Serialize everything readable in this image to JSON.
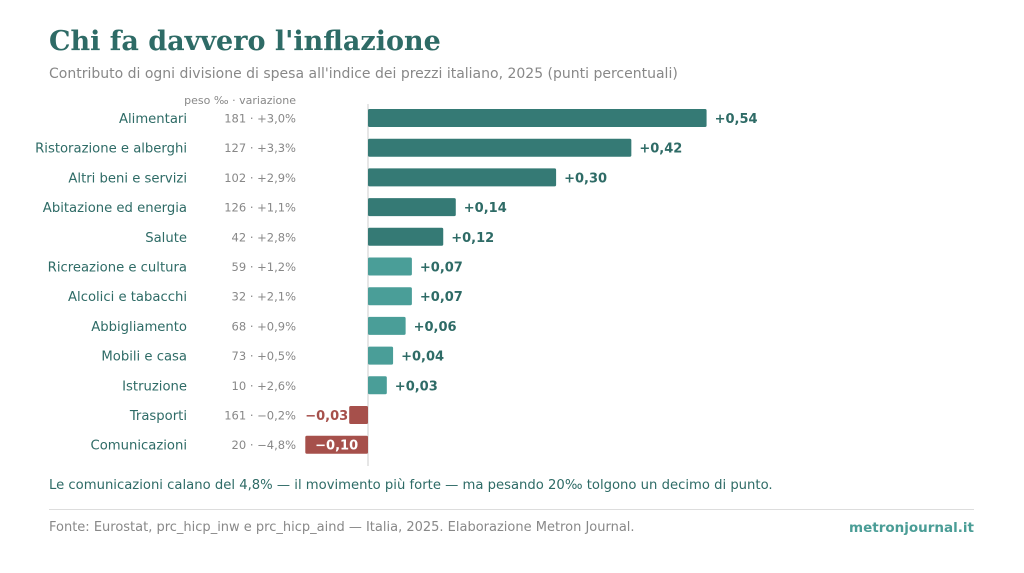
{
  "title": "Chi fa davvero l'inflazione",
  "subtitle": "Contributo di ogni divisione di spesa all'indice dei prezzi italiano, 2025 (punti percentuali)",
  "column_header": "peso ‰ · variazione",
  "callout": "Le comunicazioni calano del 4,8% — il movimento più forte — ma pesando 20‰ tolgono un decimo di punto.",
  "source": "Fonte: Eurostat, prc_hicp_inw e prc_hicp_aind — Italia, 2025. Elaborazione Metron Journal.",
  "brand": "metronjournal.it",
  "colors": {
    "major_positive": "#357a75",
    "minor_positive": "#4a9e98",
    "negative": "#a6504b",
    "title": "#2e6b66",
    "muted": "#888888"
  },
  "chart_data": {
    "type": "bar",
    "orientation": "horizontal",
    "xlim": [
      -0.1,
      0.54
    ],
    "grid": false,
    "categories": [
      "Alimentari",
      "Ristorazione e alberghi",
      "Altri beni e servizi",
      "Abitazione ed energia",
      "Salute",
      "Ricreazione e cultura",
      "Alcolici e tabacchi",
      "Abbigliamento",
      "Mobili e casa",
      "Istruzione",
      "Trasporti",
      "Comunicazioni"
    ],
    "values": [
      0.54,
      0.42,
      0.3,
      0.14,
      0.12,
      0.07,
      0.07,
      0.06,
      0.04,
      0.03,
      -0.03,
      -0.1
    ],
    "value_labels": [
      "+0,54",
      "+0,42",
      "+0,30",
      "+0,14",
      "+0,12",
      "+0,07",
      "+0,07",
      "+0,06",
      "+0,04",
      "+0,03",
      "−0,03",
      "−0,10"
    ],
    "row_notes": [
      "181 · +3,0%",
      "127 · +3,3%",
      "102 · +2,9%",
      "126 · +1,1%",
      "42 · +2,8%",
      "59 · +1,2%",
      "32 · +2,1%",
      "68 · +0,9%",
      "73 · +0,5%",
      "10 · +2,6%",
      "161 · −0,2%",
      "20 · −4,8%"
    ]
  }
}
